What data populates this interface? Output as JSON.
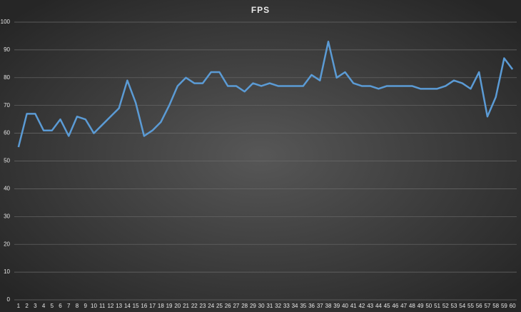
{
  "chart_data": {
    "type": "line",
    "title": "FPS",
    "categories": [
      "1",
      "2",
      "3",
      "4",
      "5",
      "6",
      "7",
      "8",
      "9",
      "10",
      "11",
      "12",
      "13",
      "14",
      "15",
      "16",
      "17",
      "18",
      "19",
      "20",
      "21",
      "22",
      "23",
      "24",
      "25",
      "26",
      "27",
      "28",
      "29",
      "30",
      "31",
      "32",
      "33",
      "34",
      "35",
      "36",
      "37",
      "38",
      "39",
      "40",
      "41",
      "42",
      "43",
      "44",
      "45",
      "46",
      "47",
      "48",
      "49",
      "50",
      "51",
      "52",
      "53",
      "54",
      "55",
      "56",
      "57",
      "58",
      "59",
      "60"
    ],
    "values": [
      55,
      67,
      67,
      61,
      61,
      65,
      59,
      66,
      65,
      60,
      63,
      66,
      69,
      79,
      71,
      59,
      61,
      64,
      70,
      77,
      80,
      78,
      78,
      82,
      82,
      77,
      77,
      75,
      78,
      77,
      78,
      77,
      77,
      77,
      77,
      81,
      79,
      93,
      80,
      82,
      78,
      77,
      77,
      76,
      77,
      77,
      77,
      77,
      76,
      76,
      76,
      77,
      79,
      78,
      76,
      82,
      66,
      73,
      87,
      83
    ],
    "color": "#5b9bd5",
    "ylim": [
      0,
      100
    ],
    "yticks": [
      0,
      10,
      20,
      30,
      40,
      50,
      60,
      70,
      80,
      90,
      100
    ],
    "grid": true
  }
}
